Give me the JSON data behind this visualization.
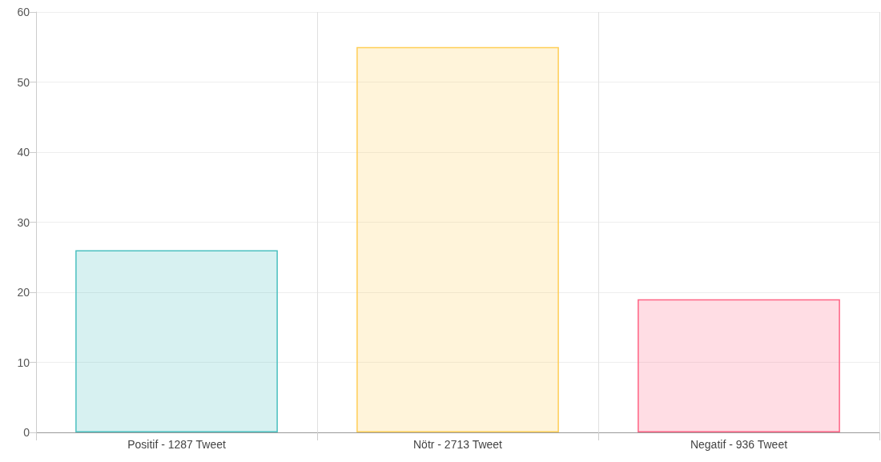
{
  "chart_data": {
    "type": "bar",
    "categories": [
      "Positif - 1287 Tweet",
      "Nötr - 2713 Tweet",
      "Negatif - 936 Tweet"
    ],
    "values": [
      26,
      55,
      19
    ],
    "colors": [
      "#4bc0c0",
      "#ffce56",
      "#ff6384"
    ],
    "ylim": [
      0,
      60
    ],
    "yticks": [
      0,
      10,
      20,
      30,
      40,
      50,
      60
    ],
    "grid": true
  }
}
